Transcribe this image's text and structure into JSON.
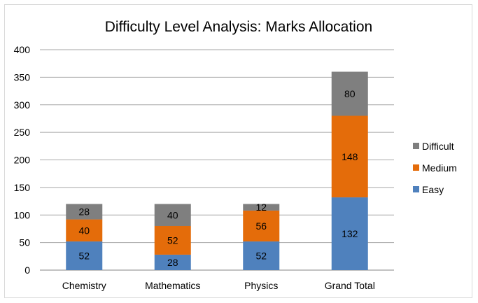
{
  "chart_data": {
    "type": "bar",
    "stacked": true,
    "title": "Difficulty Level Analysis: Marks Allocation",
    "categories": [
      "Chemistry",
      "Mathematics",
      "Physics",
      "Grand Total"
    ],
    "series": [
      {
        "name": "Easy",
        "color": "#4f81bd",
        "values": [
          52,
          28,
          52,
          132
        ]
      },
      {
        "name": "Medium",
        "color": "#e46c0a",
        "values": [
          40,
          52,
          56,
          148
        ]
      },
      {
        "name": "Difficult",
        "color": "#7f7f7f",
        "values": [
          28,
          40,
          12,
          80
        ]
      }
    ],
    "ylim": [
      0,
      400
    ],
    "yticks": [
      0,
      50,
      100,
      150,
      200,
      250,
      300,
      350,
      400
    ],
    "grid": true,
    "legend_position": "right",
    "legend_order": [
      "Difficult",
      "Medium",
      "Easy"
    ],
    "xlabel": "",
    "ylabel": ""
  }
}
